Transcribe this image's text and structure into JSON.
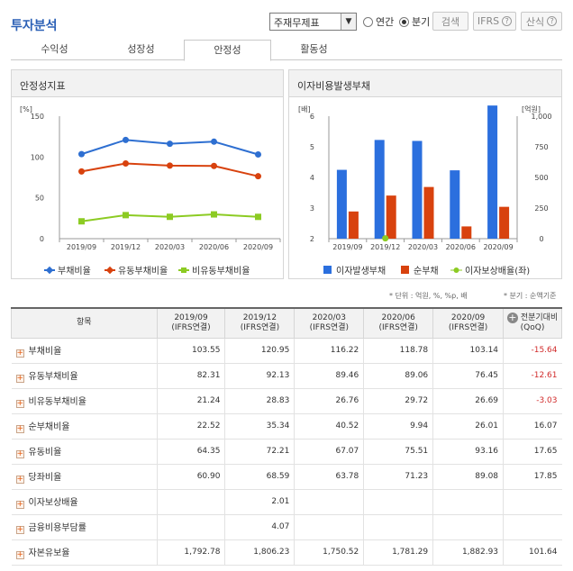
{
  "header": {
    "title": "투자분석",
    "select_value": "주재무제표",
    "radio_annual": "연간",
    "radio_quarter": "분기",
    "search_label": "검색",
    "ifrs_label": "IFRS",
    "formula_label": "산식"
  },
  "tabs": [
    "수익성",
    "성장성",
    "안정성",
    "활동성"
  ],
  "active_tab": 2,
  "left_panel": {
    "title": "안정성지표"
  },
  "right_panel": {
    "title": "이자비용발생부채"
  },
  "notes": {
    "unit": "* 단위 : 억원, %, %p, 배",
    "basis": "* 분기 : 순액기준"
  },
  "chart_data": [
    {
      "type": "line",
      "title": "",
      "y_unit": "[%]",
      "categories": [
        "2019/09",
        "2019/12",
        "2020/03",
        "2020/06",
        "2020/09"
      ],
      "ylim": [
        0,
        150
      ],
      "yticks": [
        0,
        50,
        100,
        150
      ],
      "legend_position": "bottom",
      "series": [
        {
          "name": "부채비율",
          "color": "#2e6fd1",
          "marker": "diamond",
          "values": [
            103.55,
            120.95,
            116.22,
            118.78,
            103.14
          ]
        },
        {
          "name": "유동부채비율",
          "color": "#d8420e",
          "marker": "diamond",
          "values": [
            82.31,
            92.13,
            89.46,
            89.06,
            76.45
          ]
        },
        {
          "name": "비유동부채비율",
          "color": "#8ccb23",
          "marker": "square",
          "values": [
            21.24,
            28.83,
            26.76,
            29.72,
            26.69
          ]
        }
      ]
    },
    {
      "type": "bar",
      "title": "",
      "y_unit_left": "[배]",
      "y_unit_right": "[억원]",
      "categories": [
        "2019/09",
        "2019/12",
        "2020/03",
        "2020/06",
        "2020/09"
      ],
      "ylim_left": [
        2,
        6
      ],
      "yticks_left": [
        2,
        3,
        4,
        5,
        6
      ],
      "ylim_right": [
        0,
        1000
      ],
      "yticks_right": [
        "0",
        "250",
        "500",
        "750",
        "1,000"
      ],
      "legend_position": "bottom",
      "series": [
        {
          "name": "이자발생부채",
          "color": "#2b6fde",
          "axis": "right",
          "values": [
            562,
            806,
            798,
            558,
            1087
          ]
        },
        {
          "name": "순부채",
          "color": "#d8420e",
          "axis": "right",
          "values": [
            222,
            352,
            422,
            100,
            260
          ]
        },
        {
          "name": "이자보상배율(좌)",
          "color": "#8ccb23",
          "axis": "left",
          "marker": "dot",
          "values": [
            null,
            2.01,
            null,
            null,
            null
          ]
        }
      ]
    }
  ],
  "table": {
    "headers": [
      "항목",
      "2019/09 (IFRS연결)",
      "2019/12 (IFRS연결)",
      "2020/03 (IFRS연결)",
      "2020/06 (IFRS연결)",
      "2020/09 (IFRS연결)",
      "전분기대비 (QoQ)"
    ],
    "rows": [
      {
        "name": "부채비율",
        "v": [
          "103.55",
          "120.95",
          "116.22",
          "118.78",
          "103.14",
          "-15.64"
        ]
      },
      {
        "name": "유동부채비율",
        "v": [
          "82.31",
          "92.13",
          "89.46",
          "89.06",
          "76.45",
          "-12.61"
        ]
      },
      {
        "name": "비유동부채비율",
        "v": [
          "21.24",
          "28.83",
          "26.76",
          "29.72",
          "26.69",
          "-3.03"
        ]
      },
      {
        "name": "순부채비율",
        "v": [
          "22.52",
          "35.34",
          "40.52",
          "9.94",
          "26.01",
          "16.07"
        ]
      },
      {
        "name": "유동비율",
        "v": [
          "64.35",
          "72.21",
          "67.07",
          "75.51",
          "93.16",
          "17.65"
        ]
      },
      {
        "name": "당좌비율",
        "v": [
          "60.90",
          "68.59",
          "63.78",
          "71.23",
          "89.08",
          "17.85"
        ]
      },
      {
        "name": "이자보상배율",
        "v": [
          "",
          "2.01",
          "",
          "",
          "",
          ""
        ]
      },
      {
        "name": "금융비용부담률",
        "v": [
          "",
          "4.07",
          "",
          "",
          "",
          ""
        ]
      },
      {
        "name": "자본유보율",
        "v": [
          "1,792.78",
          "1,806.23",
          "1,750.52",
          "1,781.29",
          "1,882.93",
          "101.64"
        ]
      }
    ]
  }
}
